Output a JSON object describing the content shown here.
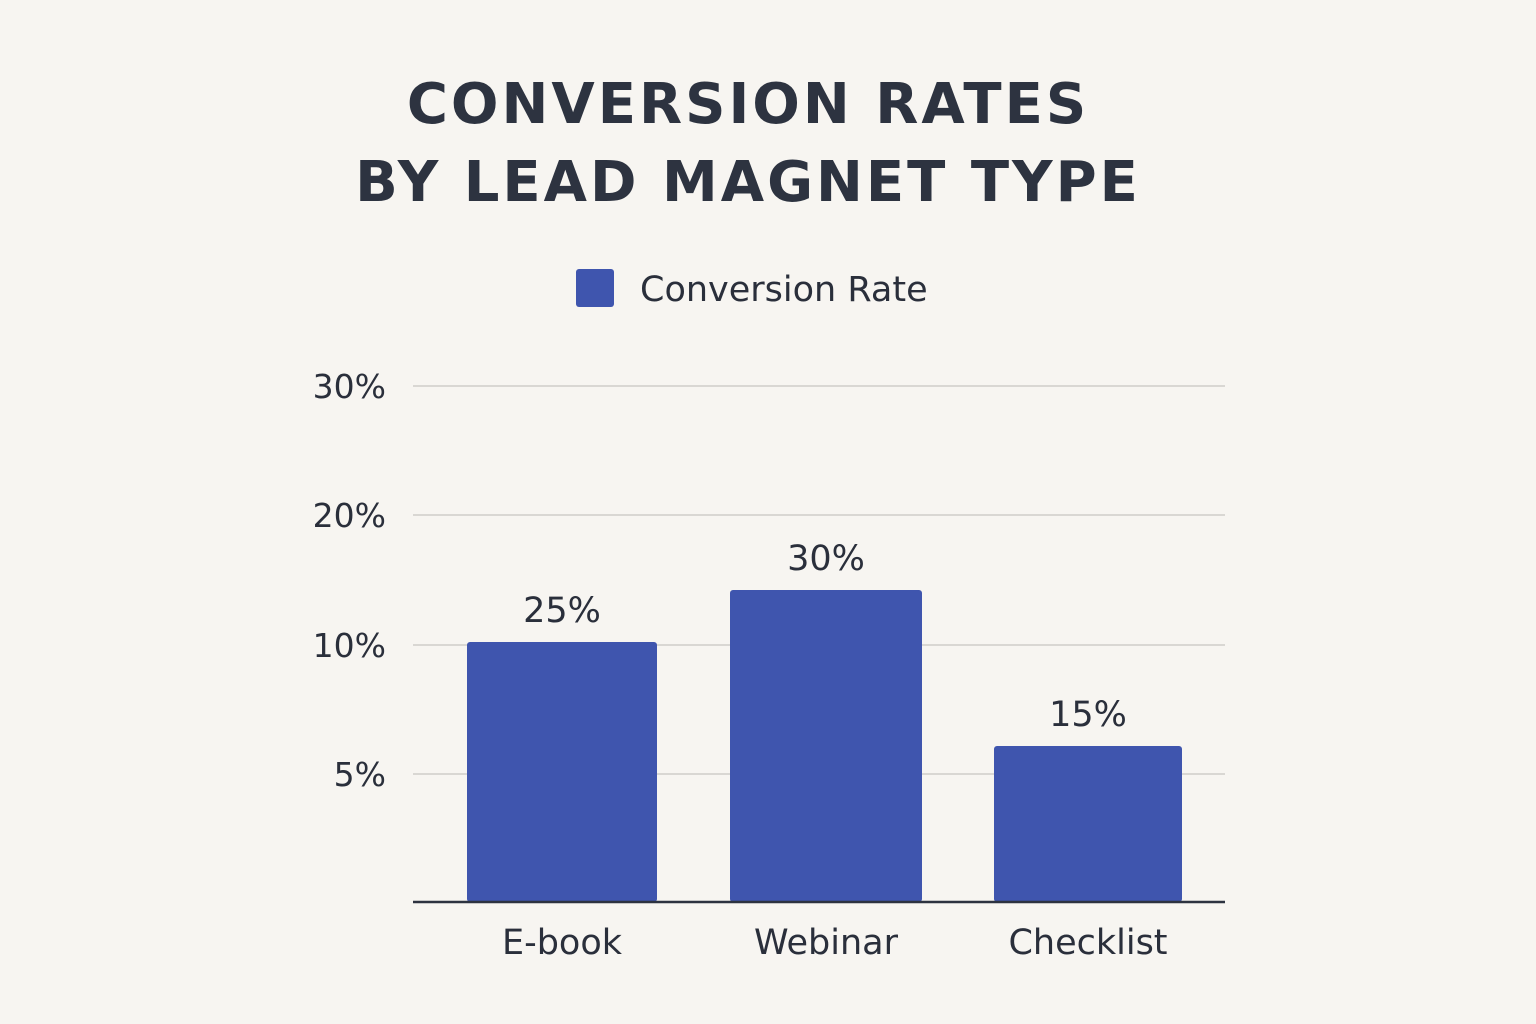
{
  "chart_data": {
    "type": "bar",
    "title_lines": [
      "CONVERSION RATES",
      "BY LEAD MAGNET TYPE"
    ],
    "categories": [
      "E-book",
      "Webinar",
      "Checklist"
    ],
    "series": [
      {
        "name": "Conversion Rate",
        "values": [
          25,
          30,
          15
        ],
        "data_labels": [
          "25%",
          "30%",
          "15%"
        ]
      }
    ],
    "y_ticks": [
      {
        "value": 30,
        "label": "30%"
      },
      {
        "value": 20,
        "label": "20%"
      },
      {
        "value": 10,
        "label": "10%"
      },
      {
        "value": 5,
        "label": "5%"
      }
    ],
    "grid": true,
    "legend_position": "top-center",
    "colors": {
      "bar": "#3f55ae",
      "grid": "#d9d7d3",
      "axis": "#2d3340",
      "text": "#2a2f3b",
      "background": "#f7f5f1"
    }
  }
}
